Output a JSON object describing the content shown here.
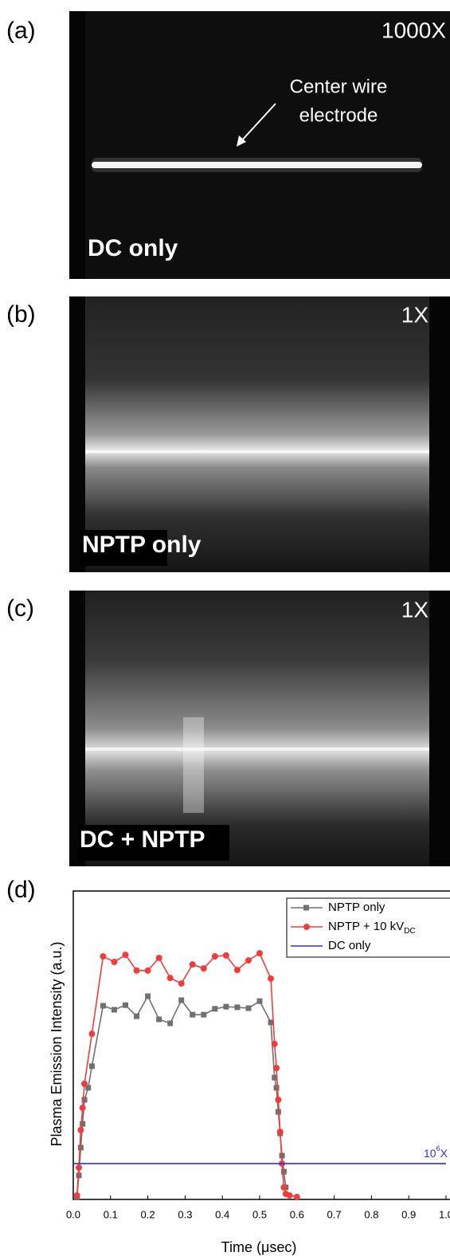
{
  "panels": [
    {
      "label": "(a)",
      "magnification": "1000X",
      "annotation": [
        "Center wire",
        "electrode"
      ],
      "caption": "DC only"
    },
    {
      "label": "(b)",
      "magnification": "1X",
      "caption": "NPTP only"
    },
    {
      "label": "(c)",
      "magnification": "1X",
      "caption": "DC + NPTP"
    }
  ],
  "chart_label": "(d)",
  "chart_data": {
    "type": "line",
    "x_label": "Time (μsec)",
    "y_label": "Plasma Emission Intensity (a.u.)",
    "xlim": [
      0,
      1
    ],
    "ylim": [
      0,
      100
    ],
    "xticks": [
      {
        "value": 0,
        "label": "0.0"
      },
      0.1,
      0.2,
      0.3,
      0.4,
      0.5,
      0.6,
      0.7,
      0.8,
      0.9,
      {
        "value": 1,
        "label": "1.0"
      }
    ],
    "series": [
      {
        "name": "NPTP only",
        "color": "#707070",
        "marker": "square",
        "x": [
          0.01,
          0.015,
          0.02,
          0.025,
          0.03,
          0.04,
          0.05,
          0.08,
          0.11,
          0.14,
          0.17,
          0.2,
          0.23,
          0.26,
          0.29,
          0.32,
          0.35,
          0.38,
          0.41,
          0.44,
          0.47,
          0.5,
          0.53,
          0.54,
          0.545,
          0.55,
          0.555,
          0.56,
          0.565,
          0.57
        ],
        "values": [
          0.8,
          7.8,
          16.8,
          24.5,
          32.3,
          36.2,
          43.2,
          62.8,
          61.5,
          63.0,
          59.4,
          65.9,
          58.4,
          57.1,
          64.6,
          59.9,
          59.9,
          61.8,
          62.5,
          62.3,
          62.0,
          64.3,
          57.4,
          39.5,
          36.2,
          28.4,
          21.4,
          14.2,
          9.0,
          3.9
        ]
      },
      {
        "name": "NPTP + 10 kV",
        "name_sub": "DC",
        "color": "#f03c3c",
        "marker": "circle",
        "x": [
          0.01,
          0.015,
          0.02,
          0.025,
          0.03,
          0.05,
          0.08,
          0.11,
          0.14,
          0.17,
          0.2,
          0.23,
          0.26,
          0.29,
          0.32,
          0.35,
          0.38,
          0.41,
          0.44,
          0.47,
          0.5,
          0.53,
          0.54,
          0.545,
          0.55,
          0.555,
          0.56,
          0.565,
          0.57,
          0.58,
          0.6
        ],
        "values": [
          1.3,
          10.3,
          22.5,
          29.7,
          37.5,
          53.7,
          78.8,
          77.0,
          79.3,
          74.2,
          74.2,
          78.3,
          71.8,
          70.0,
          76.2,
          74.9,
          78.8,
          79.1,
          74.4,
          77.5,
          79.8,
          71.6,
          50.4,
          42.6,
          32.3,
          21.9,
          11.6,
          3.9,
          1.8,
          1.3,
          0.8
        ]
      },
      {
        "name": "DC only",
        "color": "#2f2fe0",
        "marker": "none",
        "x": [
          0,
          1
        ],
        "values": [
          11.6,
          11.6
        ]
      }
    ],
    "annotation": {
      "base": "10",
      "sup": "6",
      "suffix": "X"
    }
  }
}
